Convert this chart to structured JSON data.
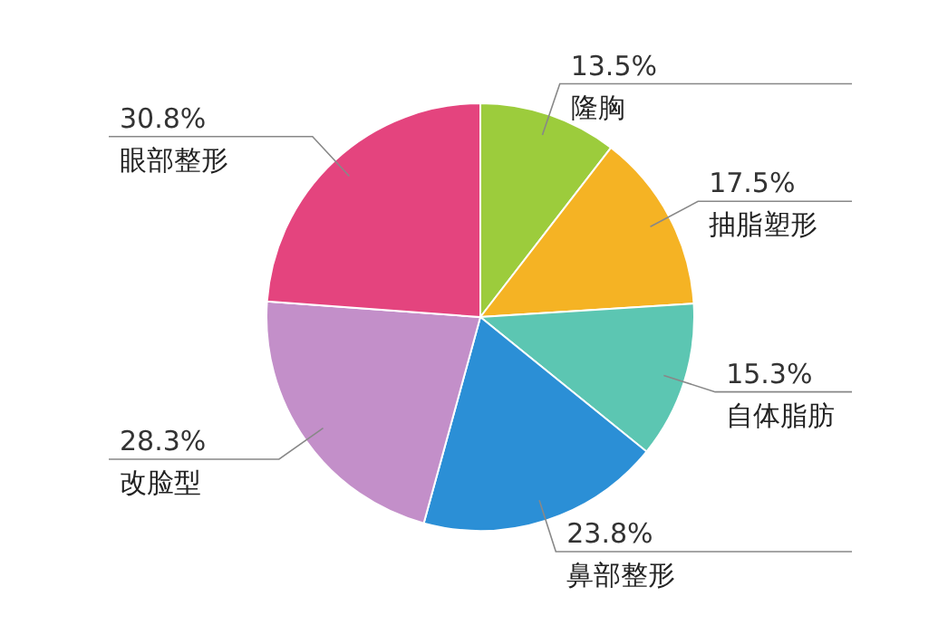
{
  "chart_data": {
    "type": "pie",
    "categories": [
      "隆胸",
      "抽脂塑形",
      "自体脂肪",
      "鼻部整形",
      "改脸型",
      "眼部整形"
    ],
    "values": [
      13.5,
      17.5,
      15.3,
      23.8,
      28.3,
      30.8
    ],
    "value_labels": [
      "13.5%",
      "17.5%",
      "15.3%",
      "23.8%",
      "28.3%",
      "30.8%"
    ],
    "colors": [
      "#9ccc3c",
      "#f5b324",
      "#5cc6b2",
      "#2b8fd6",
      "#c38fc9",
      "#e4447e"
    ]
  }
}
